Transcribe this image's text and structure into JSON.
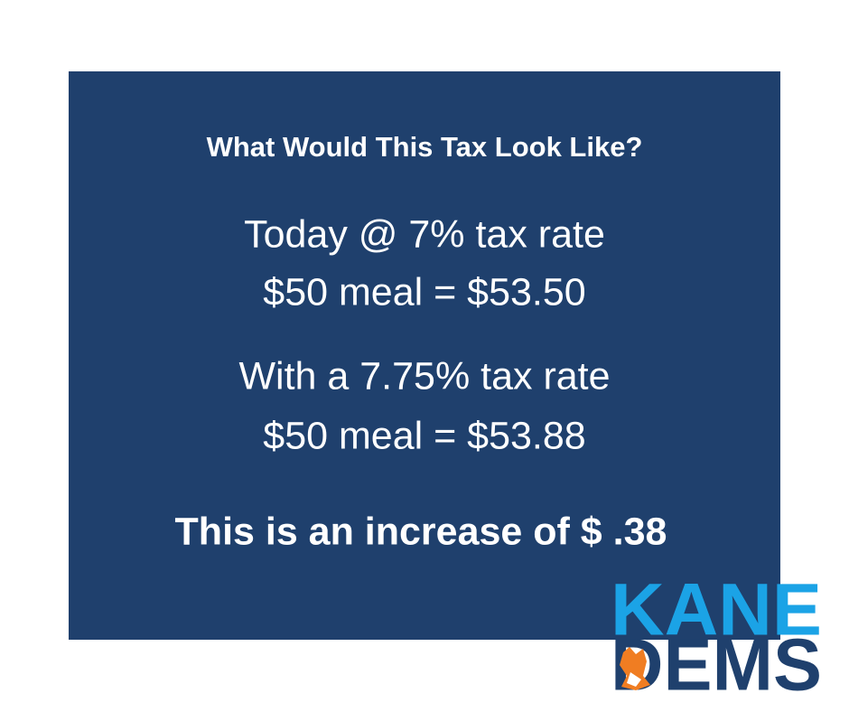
{
  "header": {
    "title": "What Would This Tax Look Like?"
  },
  "today": {
    "line1": "Today @ 7% tax rate",
    "line2": "$50 meal = $53.50"
  },
  "proposed": {
    "line1": "With a 7.75% tax rate",
    "line2": "$50 meal = $53.88"
  },
  "conclusion": "This is an increase of $ .38",
  "logo": {
    "top": "KANE",
    "bottom": "DEMS"
  }
}
